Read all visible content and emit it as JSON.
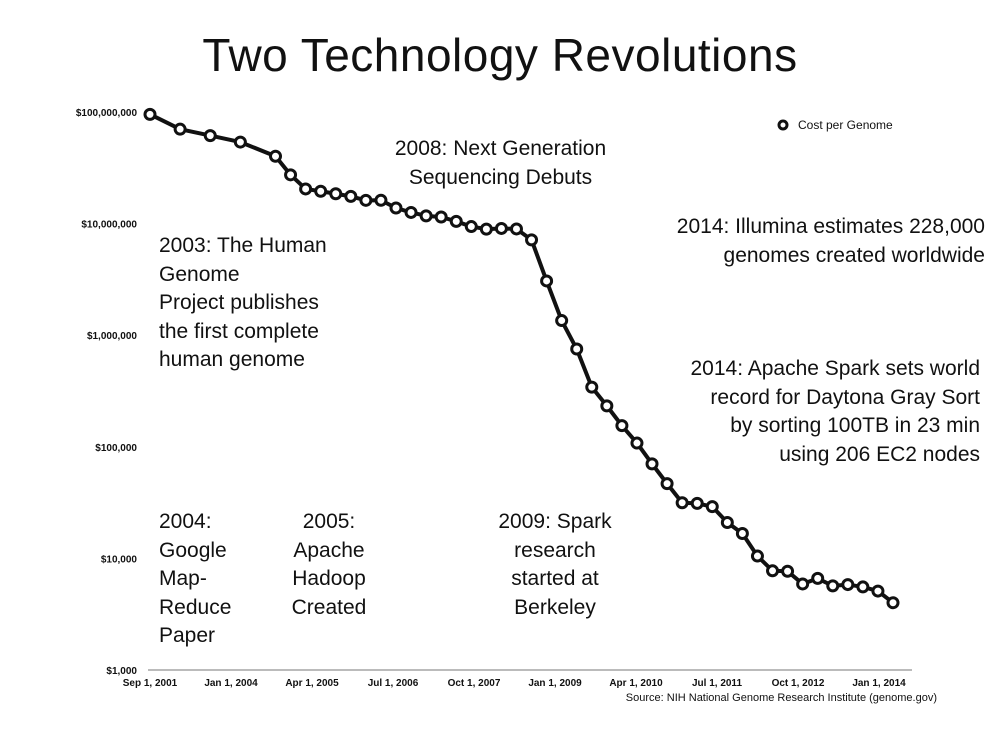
{
  "title": "Two Technology Revolutions",
  "source": "Source: NIH National Genome Research Institute (genome.gov)",
  "annotations": {
    "a2003": "2003: The Human\nGenome\nProject publishes\nthe first complete\nhuman genome",
    "a2008": "2008: Next Generation\nSequencing Debuts",
    "a2014i": "2014: Illumina estimates 228,000\ngenomes created worldwide",
    "a2014s": "2014: Apache Spark sets world\nrecord for Daytona Gray Sort\nby sorting 100TB in 23 min\nusing 206 EC2 nodes",
    "a2004": "2004:\nGoogle\nMap-\nReduce\nPaper",
    "a2005": "2005:\nApache\nHadoop\nCreated",
    "a2009": "2009: Spark\nresearch\nstarted at\nBerkeley"
  },
  "chart_data": {
    "type": "line",
    "title": "Two Technology Revolutions",
    "xlabel": "",
    "ylabel": "",
    "y_scale": "log",
    "ylim": [
      1000,
      100000000
    ],
    "y_ticks": [
      "$1,000",
      "$10,000",
      "$100,000",
      "$1,000,000",
      "$10,000,000",
      "$100,000,000"
    ],
    "x_ticks": [
      "Sep 1, 2001",
      "Jan 1, 2004",
      "Apr 1, 2005",
      "Jul 1, 2006",
      "Oct 1, 2007",
      "Jan 1, 2009",
      "Apr 1, 2010",
      "Jul 1, 2011",
      "Oct 1, 2012",
      "Jan 1, 2014"
    ],
    "legend": {
      "position": "top-right"
    },
    "grid": false,
    "series": [
      {
        "name": "Cost per Genome",
        "color": "#111111",
        "marker": "hollow-circle",
        "x": [
          "Sep 2001",
          "Mar 2002",
          "Sep 2002",
          "Mar 2003",
          "Oct 2003",
          "Jan 2004",
          "Apr 2004",
          "Jul 2004",
          "Oct 2004",
          "Jan 2005",
          "Apr 2005",
          "Jul 2005",
          "Oct 2005",
          "Jan 2006",
          "Apr 2006",
          "Jul 2006",
          "Oct 2006",
          "Jan 2007",
          "Apr 2007",
          "Jul 2007",
          "Oct 2007",
          "Jan 2008",
          "Apr 2008",
          "Jul 2008",
          "Oct 2008",
          "Jan 2009",
          "Apr 2009",
          "Jul 2009",
          "Oct 2009",
          "Jan 2010",
          "Apr 2010",
          "Jul 2010",
          "Oct 2010",
          "Jan 2011",
          "Apr 2011",
          "Jul 2011",
          "Oct 2011",
          "Jan 2012",
          "Apr 2012",
          "Jul 2012",
          "Oct 2012",
          "Jan 2013",
          "Apr 2013",
          "Jul 2013",
          "Oct 2013",
          "Jan 2014"
        ],
        "values": [
          95263072,
          70175437,
          61448422,
          53751684,
          40157554,
          27347989,
          20442576,
          19504604,
          18519609,
          17534030,
          16159613,
          16180005,
          13801124,
          12585658,
          11732535,
          11455864,
          10474556,
          9408739,
          8927342,
          9047003,
          8956431,
          7147571,
          3063101,
          1352982,
          752080,
          342502,
          232735,
          154714,
          108065,
          70333,
          46774,
          31512,
          31125,
          29092,
          20963,
          16712,
          10497,
          7743,
          7666,
          5901,
          6618,
          5671,
          5826,
          5550,
          5096,
          4008
        ]
      }
    ]
  }
}
